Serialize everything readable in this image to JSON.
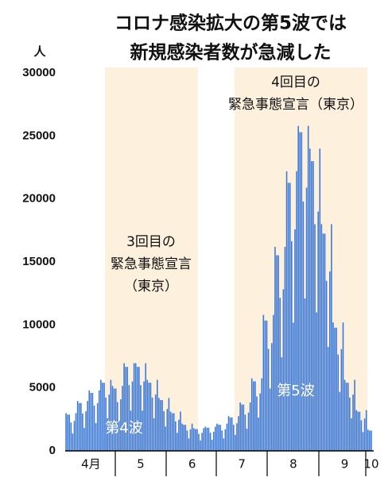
{
  "chart_data": {
    "type": "bar",
    "title_lines": [
      "コロナ感染拡大の第5波では",
      "新規感染者数が急減した"
    ],
    "y_unit": "人",
    "color": "#3b78d8",
    "ylim": [
      0,
      30000
    ],
    "yticks": [
      0,
      5000,
      10000,
      15000,
      20000,
      25000,
      30000
    ],
    "grid": false,
    "annotations": [
      {
        "lines": [
          "3回目の",
          "緊急事態宣言",
          "（東京）"
        ]
      },
      {
        "lines": [
          "4回目の",
          "緊急事態宣言（東京）"
        ]
      },
      {
        "lines": [
          "第4波"
        ]
      },
      {
        "lines": [
          "第5波"
        ]
      }
    ],
    "categories": [
      null,
      null,
      null,
      null,
      null,
      null,
      null,
      null,
      null,
      null,
      null,
      null,
      null,
      null,
      null,
      "4月",
      null,
      null,
      null,
      null,
      null,
      null,
      null,
      null,
      null,
      null,
      null,
      null,
      null,
      null,
      null,
      null,
      null,
      null,
      null,
      null,
      null,
      null,
      null,
      null,
      null,
      null,
      null,
      null,
      null,
      "5",
      null,
      null,
      null,
      null,
      null,
      null,
      null,
      null,
      null,
      null,
      null,
      null,
      null,
      null,
      null,
      null,
      null,
      null,
      null,
      null,
      null,
      null,
      null,
      null,
      null,
      null,
      null,
      null,
      null,
      null,
      "6",
      null,
      null,
      null,
      null,
      null,
      null,
      null,
      null,
      null,
      null,
      null,
      null,
      null,
      null,
      null,
      null,
      null,
      null,
      null,
      null,
      null,
      null,
      null,
      null,
      null,
      null,
      null,
      null,
      null,
      "7",
      null,
      null,
      null,
      null,
      null,
      null,
      null,
      null,
      null,
      null,
      null,
      null,
      null,
      null,
      null,
      null,
      null,
      null,
      null,
      null,
      null,
      null,
      null,
      null,
      null,
      null,
      null,
      null,
      null,
      null,
      "8",
      null,
      null,
      null,
      null,
      null,
      null,
      null,
      null,
      null,
      null,
      null,
      null,
      null,
      null,
      null,
      null,
      null,
      null,
      null,
      null,
      null,
      null,
      null,
      null,
      null,
      null,
      null,
      null,
      null,
      null,
      "9",
      null,
      null,
      null,
      null,
      null,
      null,
      null,
      null,
      null,
      null,
      null,
      null,
      null,
      null,
      null,
      "10"
    ],
    "values": [
      3000,
      2880,
      2880,
      2250,
      1380,
      2380,
      3000,
      3960,
      3800,
      3800,
      2970,
      1820,
      3140,
      3960,
      4800,
      4600,
      4600,
      3600,
      2200,
      3800,
      4800,
      5640,
      5410,
      5410,
      4230,
      2590,
      4470,
      5640,
      5160,
      4950,
      4950,
      3870,
      2370,
      4090,
      5160,
      6960,
      6670,
      6670,
      5220,
      3190,
      5510,
      6960,
      6960,
      6670,
      6670,
      5220,
      3190,
      5510,
      6960,
      5640,
      5410,
      5410,
      4230,
      2590,
      4470,
      5640,
      4200,
      4030,
      4030,
      3150,
      1930,
      3330,
      4200,
      3120,
      2990,
      2990,
      2340,
      1430,
      2470,
      3120,
      2160,
      2070,
      2070,
      1620,
      990,
      1710,
      2160,
      1800,
      1730,
      1730,
      1350,
      830,
      1430,
      1800,
      1920,
      1840,
      1840,
      1440,
      880,
      1520,
      1920,
      2160,
      2070,
      2070,
      1620,
      990,
      1710,
      2160,
      2760,
      2650,
      2650,
      2070,
      1270,
      2190,
      2760,
      3840,
      3680,
      3680,
      2880,
      1760,
      3040,
      3840,
      5760,
      5520,
      5520,
      4320,
      2640,
      4560,
      5760,
      10800,
      10350,
      10350,
      8100,
      4950,
      8550,
      10800,
      16200,
      15530,
      15530,
      12150,
      7430,
      12830,
      16200,
      22200,
      21280,
      21280,
      16650,
      10180,
      17580,
      22200,
      25800,
      25300,
      25300,
      19800,
      12100,
      20900,
      25800,
      24000,
      23000,
      23000,
      18000,
      11000,
      19000,
      24000,
      18000,
      17250,
      17250,
      13500,
      8250,
      14250,
      18000,
      10200,
      9780,
      9780,
      7650,
      4680,
      8080,
      10200,
      5640,
      5410,
      5410,
      4230,
      2590,
      4470,
      5640,
      3240,
      3110,
      3110,
      2430,
      1490,
      2570,
      3240,
      1680,
      1610,
      1610
    ]
  }
}
